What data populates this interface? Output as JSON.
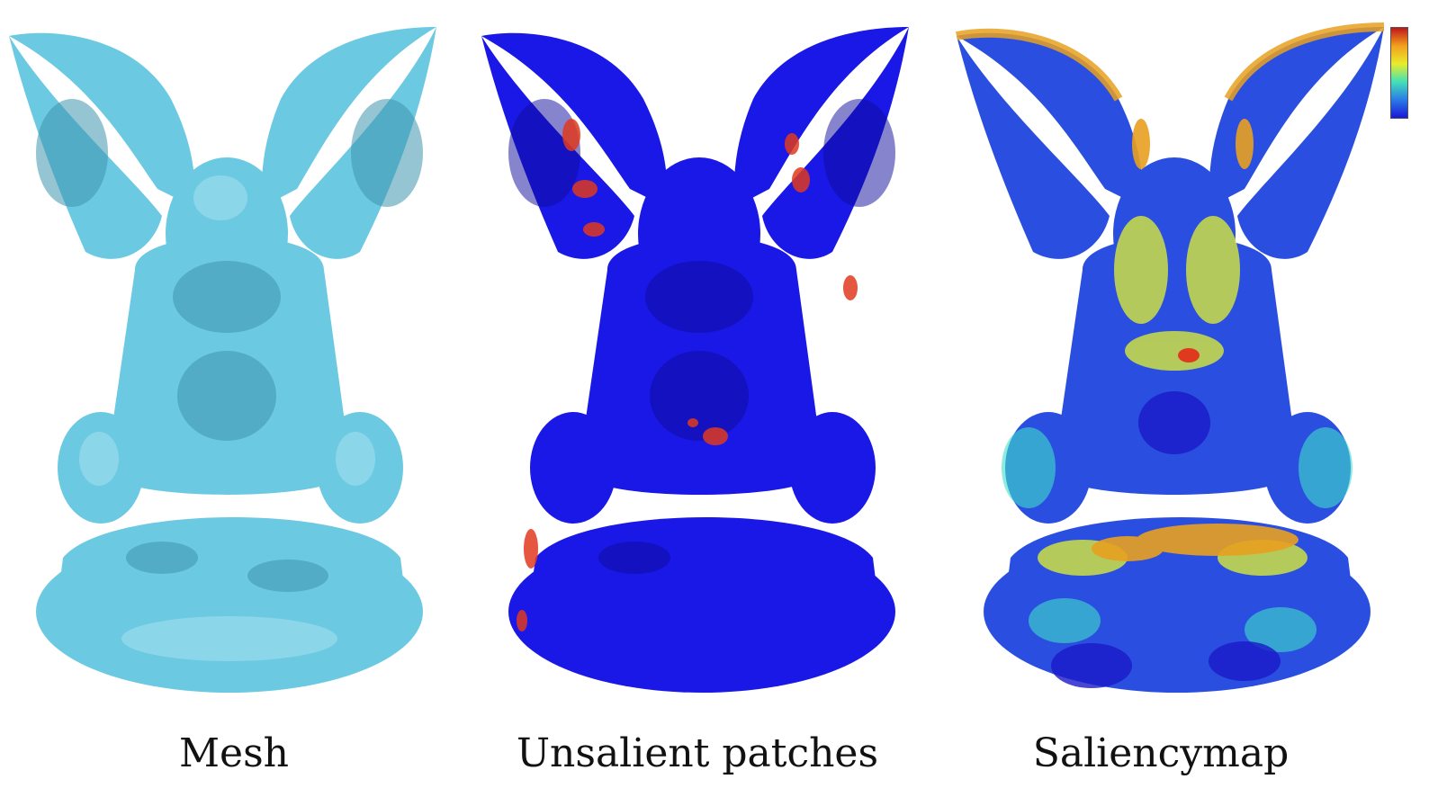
{
  "figure": {
    "panels": [
      {
        "caption": "Mesh",
        "fill": "#6cc9e2",
        "shade": "#3e93ad",
        "highlight": "#9adcec"
      },
      {
        "caption": "Unsalient patches",
        "fill": "#1a18e6",
        "shade": "#0c0a9a",
        "highlight": "#3a40ff",
        "patch_color": "#e03a1e"
      },
      {
        "caption": "Saliencymap",
        "fill": "#2a4fe0",
        "shade": "#15239a",
        "highlight": "#3fe0c8",
        "hot": "#e8a020",
        "warm": "#d7e83a"
      }
    ],
    "colorbar": {
      "colors": [
        "#c0161b",
        "#f3a01d",
        "#e8ec2c",
        "#43e0b8",
        "#2b7be6",
        "#1a18d8"
      ]
    }
  }
}
